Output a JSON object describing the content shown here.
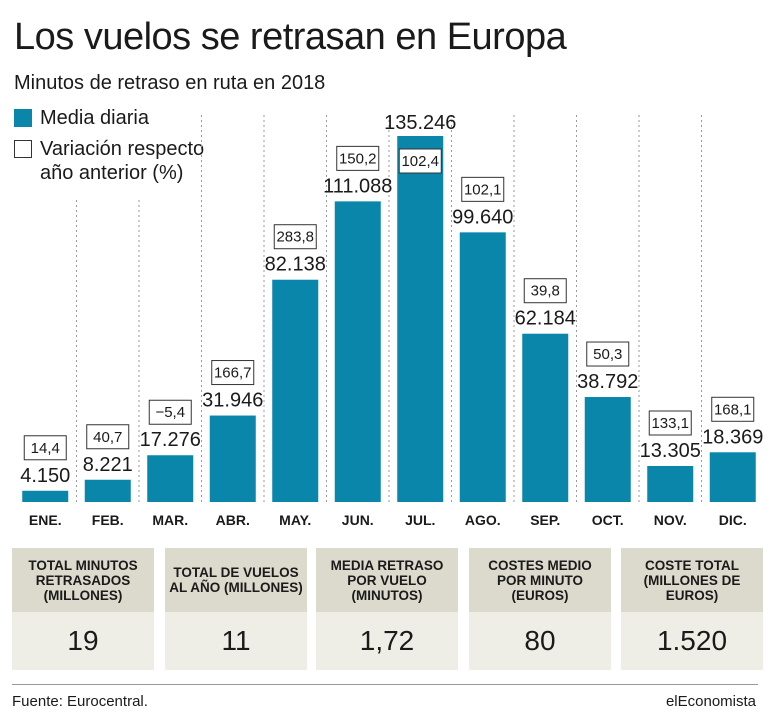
{
  "header": {
    "title": "Los vuelos se retrasan en Europa",
    "subtitle": "Minutos de retraso en ruta en 2018"
  },
  "legend": {
    "bar_label": "Media diaria",
    "box_label_line1": "Variación respecto",
    "box_label_line2": "año anterior (%)"
  },
  "colors": {
    "bar": "#0a86aa",
    "text": "#1a1a1a",
    "box_border": "#333333",
    "stat_header_bg": "#dcdacd",
    "stat_value_bg": "#efeee6"
  },
  "chart_data": {
    "type": "bar",
    "title": "Los vuelos se retrasan en Europa",
    "subtitle": "Minutos de retraso en ruta en 2018",
    "categories": [
      "ENE.",
      "FEB.",
      "MAR.",
      "ABR.",
      "MAY.",
      "JUN.",
      "JUL.",
      "AGO.",
      "SEP.",
      "OCT.",
      "NOV.",
      "DIC."
    ],
    "series": [
      {
        "name": "Media diaria",
        "values": [
          4150,
          8221,
          17276,
          31946,
          82138,
          111088,
          135246,
          99640,
          62184,
          38792,
          13305,
          18369
        ],
        "labels": [
          "4.150",
          "8.221",
          "17.276",
          "31.946",
          "82.138",
          "111.088",
          "135.246",
          "99.640",
          "62.184",
          "38.792",
          "13.305",
          "18.369"
        ]
      },
      {
        "name": "Variación respecto año anterior (%)",
        "values": [
          14.4,
          40.7,
          -5.4,
          166.7,
          283.8,
          150.2,
          102.4,
          102.1,
          39.8,
          50.3,
          133.1,
          168.1
        ],
        "labels": [
          "14,4",
          "40,7",
          "−5,4",
          "166,7",
          "283,8",
          "150,2",
          "102,4",
          "102,1",
          "39,8",
          "50,3",
          "133,1",
          "168,1"
        ]
      }
    ],
    "ylim": [
      0,
      135246
    ],
    "grid": false,
    "legend_position": "top-left"
  },
  "stats": [
    {
      "label": "TOTAL MINUTOS RETRASADOS (MILLONES)",
      "value": "19"
    },
    {
      "label": "TOTAL DE VUELOS AL AÑO (MILLONES)",
      "value": "11"
    },
    {
      "label": "MEDIA RETRASO POR VUELO (MINUTOS)",
      "value": "1,72"
    },
    {
      "label": "COSTES MEDIO POR MINUTO (EUROS)",
      "value": "80"
    },
    {
      "label": "COSTE TOTAL (MILLONES DE EUROS)",
      "value": "1.520"
    }
  ],
  "footer": {
    "source": "Fuente: Eurocentral.",
    "brand": "elEconomista"
  }
}
